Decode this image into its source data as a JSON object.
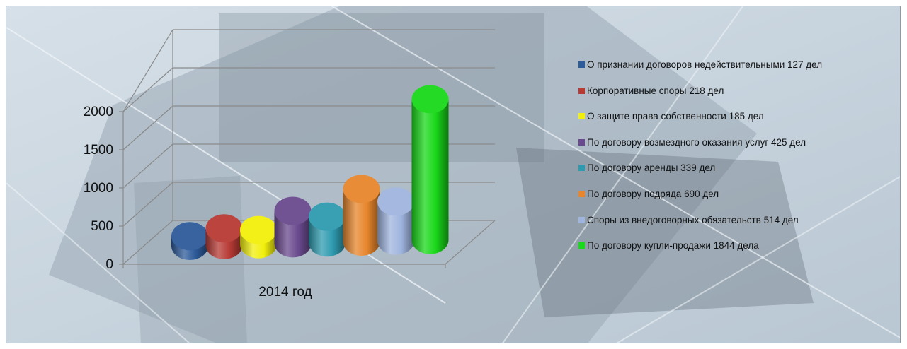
{
  "chart_data": {
    "type": "bar",
    "style": "3d-cylinder",
    "categories": [
      "2014 год"
    ],
    "ylim": [
      0,
      2000
    ],
    "yticks": [
      0,
      500,
      1000,
      1500,
      2000
    ],
    "grid": true,
    "legend_position": "right",
    "series": [
      {
        "name": "О признании договоров недействительными 127 дел",
        "values": [
          127
        ],
        "color": "#2e5b9a"
      },
      {
        "name": "Корпоративные споры 218 дел",
        "values": [
          218
        ],
        "color": "#b73a35"
      },
      {
        "name": "О защите права собственности 185 дел",
        "values": [
          185
        ],
        "color": "#f2ef0c"
      },
      {
        "name": "По договору возмездного оказания услуг 425 дел",
        "values": [
          425
        ],
        "color": "#6a4a8e"
      },
      {
        "name": "По договору аренды 339 дел",
        "values": [
          339
        ],
        "color": "#2f9bb0"
      },
      {
        "name": "По договору подряда 690 дел",
        "values": [
          690
        ],
        "color": "#e7862c"
      },
      {
        "name": "Споры из внедоговорных обязательств 514 дел",
        "values": [
          514
        ],
        "color": "#9fb4de"
      },
      {
        "name": "По договору купли-продажи 1844 дела",
        "values": [
          1844
        ],
        "color": "#1ad81a"
      }
    ]
  }
}
